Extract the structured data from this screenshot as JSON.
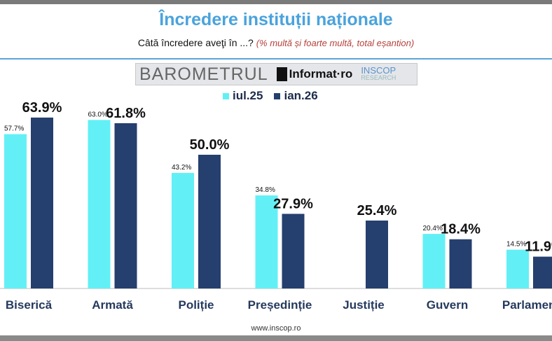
{
  "chart_data": {
    "type": "bar",
    "title": "Încredere instituții naționale",
    "subtitle": "Câtă încredere aveţi în ...?",
    "subtitle_note": "(% multă și foarte multă, total eșantion)",
    "categories": [
      "Biserică",
      "Armată",
      "Poliție",
      "Președinție",
      "Justiție",
      "Guvern",
      "Parlament"
    ],
    "series": [
      {
        "name": "iul.25",
        "color": "#62f0f6",
        "values": [
          57.7,
          63.0,
          43.2,
          34.8,
          null,
          20.4,
          14.5
        ]
      },
      {
        "name": "ian.26",
        "color": "#253f6e",
        "values": [
          63.9,
          61.8,
          50.0,
          27.9,
          25.4,
          18.4,
          11.9
        ]
      }
    ],
    "value_format": "%",
    "grid": false,
    "legend_position": "top"
  },
  "branding": {
    "barometer": "BAROMETRUL",
    "informat": "Informat·ro",
    "inscop": "INSCOP",
    "inscop_sub": "RESEARCH"
  },
  "footer": "www.inscop.ro"
}
